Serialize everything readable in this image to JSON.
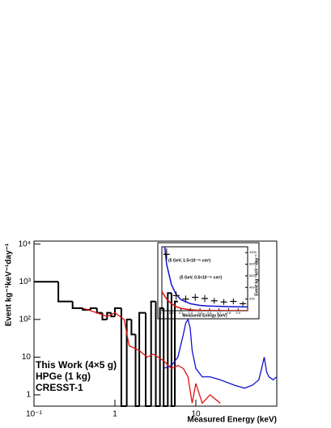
{
  "chart_data": [
    {
      "type": "step",
      "xlabel": "Measured Energy (keV)",
      "ylabel": "Event kg⁻¹keV⁻¹day⁻¹",
      "log_x": true,
      "log_y": true,
      "xlim": [
        0.1,
        100
      ],
      "xticks": [
        {
          "value": 0.1,
          "label": "10⁻¹"
        },
        1,
        10
      ],
      "ylim": [
        0.5,
        12000
      ],
      "yticks": [
        1,
        10,
        {
          "value": 100,
          "label": "10²"
        },
        {
          "value": 1000,
          "label": "10³"
        },
        {
          "value": 10000,
          "label": "10⁴"
        }
      ],
      "series": [
        {
          "name": "This Work (4×5 g)",
          "color": "#000000",
          "bins": [
            0.1,
            0.2,
            0.3,
            0.4,
            0.5,
            0.6,
            0.7,
            0.8,
            0.9,
            1.0,
            1.2,
            1.4,
            1.6,
            1.8,
            2.0,
            2.4,
            2.8,
            3.2,
            3.6,
            4.0,
            4.5,
            5.0,
            5.5,
            6.0
          ],
          "values": [
            1000,
            300,
            200,
            180,
            200,
            150,
            100,
            150,
            120,
            200,
            0.5,
            100,
            40,
            0.5,
            150,
            0.5,
            300,
            0.5,
            200,
            0.5,
            500,
            0.5,
            300
          ]
        },
        {
          "name": "HPGe (1 kg)",
          "color": "#1010d0",
          "x": [
            4,
            5,
            6,
            7,
            7.5,
            8,
            8.5,
            9,
            10,
            12,
            15,
            20,
            30,
            40,
            50,
            60,
            65,
            70,
            75,
            80,
            90,
            100
          ],
          "values": [
            5,
            6,
            10,
            40,
            80,
            100,
            60,
            15,
            5,
            3,
            3,
            2.5,
            1.8,
            1.5,
            1.8,
            2.5,
            5,
            10,
            4,
            3,
            2.5,
            3
          ]
        },
        {
          "name": "CRESST-1",
          "color": "#e01010",
          "x": [
            0.4,
            0.6,
            0.8,
            1.0,
            1.3,
            1.5,
            2,
            2.5,
            3,
            4,
            5,
            6,
            7,
            8,
            9,
            10,
            12,
            15,
            20
          ],
          "values": [
            200,
            150,
            120,
            150,
            100,
            20,
            15,
            10,
            12,
            8,
            5,
            6,
            5,
            3,
            0.6,
            2,
            0.6,
            1,
            0.6
          ]
        }
      ],
      "legend": "lower left"
    },
    {
      "type": "inset",
      "xlabel": "Measured Energy (keV)",
      "ylabel": "Event kg⁻¹keV⁻¹day⁻¹",
      "xlim": [
        0.1,
        1.0
      ],
      "xticks": [
        0.1,
        0.2,
        0.3,
        0.4,
        0.5,
        0.6,
        0.7,
        0.8,
        0.9
      ],
      "ylim": [
        0,
        1100
      ],
      "yticks": [
        200,
        400,
        600,
        800,
        1000
      ],
      "points": {
        "x": [
          0.15,
          0.25,
          0.35,
          0.45,
          0.55,
          0.65,
          0.75,
          0.85,
          0.95
        ],
        "values": [
          970,
          260,
          200,
          230,
          210,
          170,
          150,
          160,
          120
        ],
        "errors": [
          100,
          70,
          60,
          60,
          60,
          50,
          50,
          50,
          40
        ]
      },
      "series": [
        {
          "name": "(5 GeV, 1.5×10⁻³⁹ cm²)",
          "color": "#1010d0",
          "x": [
            0.13,
            0.15,
            0.2,
            0.25,
            0.3,
            0.4,
            0.5,
            0.6,
            0.8,
            1.0
          ],
          "values": [
            1100,
            800,
            450,
            280,
            190,
            120,
            90,
            80,
            70,
            65
          ]
        },
        {
          "name": "(5 GeV, 0.5×10⁻³⁹ cm²)",
          "color": "#e01010",
          "x": [
            0.1,
            0.15,
            0.2,
            0.25,
            0.3,
            0.4,
            0.5,
            0.7,
            1.0
          ],
          "values": [
            330,
            200,
            120,
            70,
            40,
            15,
            5,
            1,
            0
          ]
        }
      ]
    }
  ]
}
